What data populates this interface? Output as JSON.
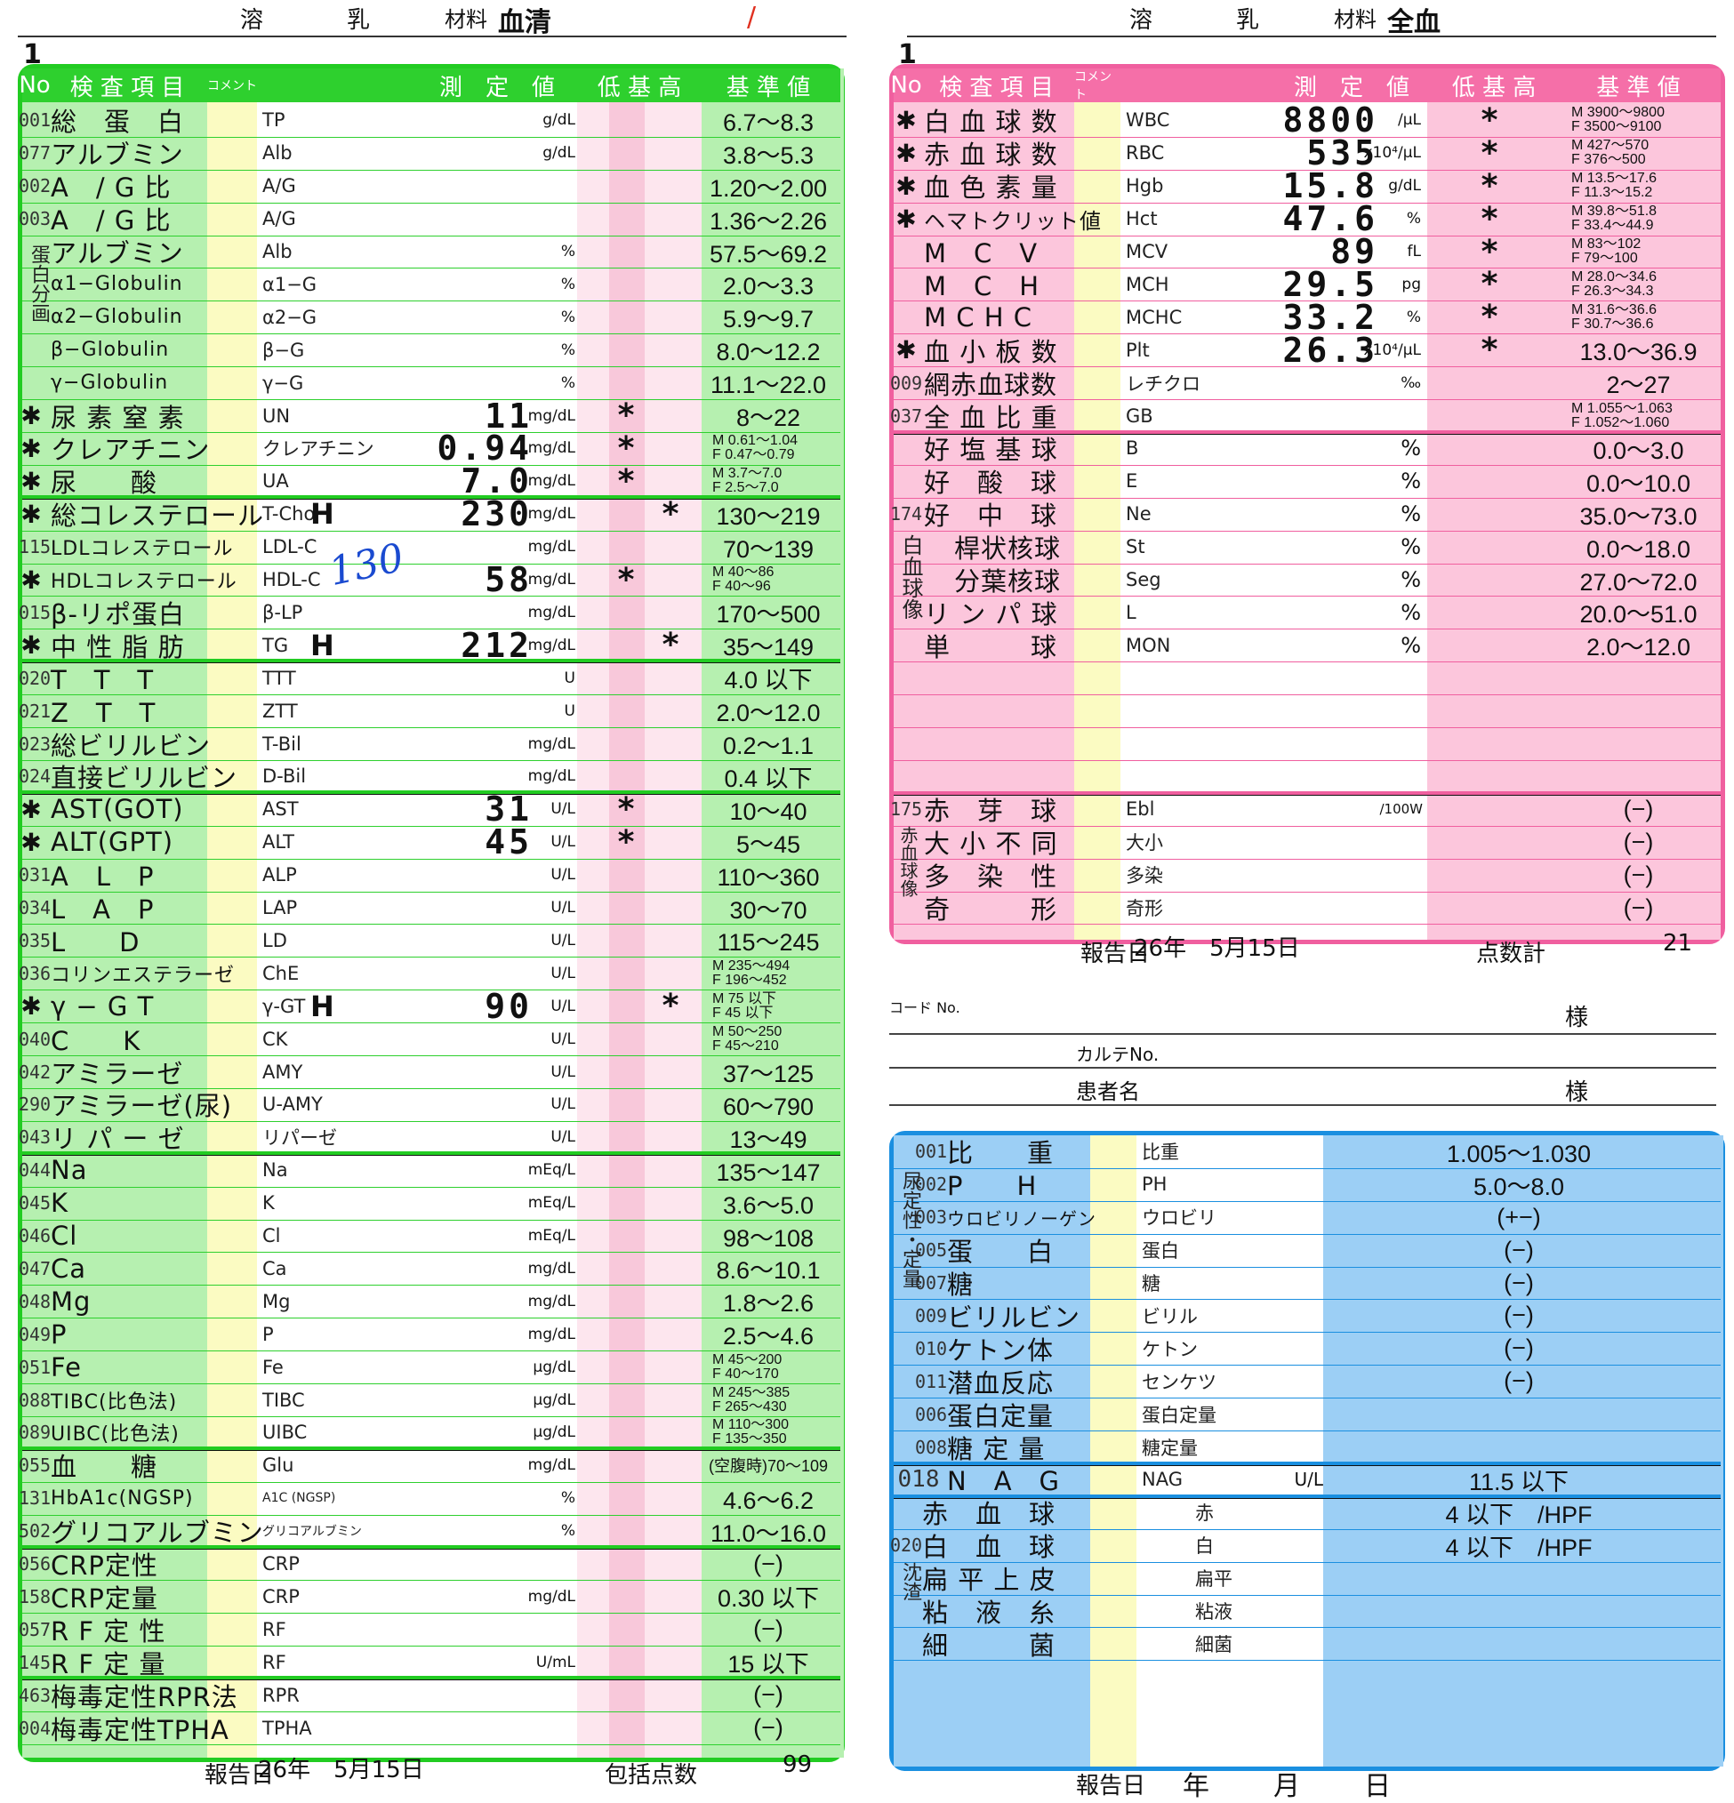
{
  "left": {
    "header": {
      "hemolysis": "溶",
      "chyle": "乳",
      "material_label": "材料",
      "material": "血清"
    },
    "page_no": "1",
    "columns": {
      "no": "No",
      "item": "検 査 項 目",
      "comment": "コメント",
      "value": "測　定　値",
      "lmh": "低 基 高",
      "ref": "基 準 値"
    },
    "rows": [
      {
        "no": "001",
        "name": "総　蛋　白",
        "code": "TP",
        "flag": "",
        "val": "",
        "unit": "g/dL",
        "ast": "",
        "ref": "6.7〜8.3",
        "mark": ""
      },
      {
        "no": "077",
        "name": "アルブミン",
        "code": "Alb",
        "flag": "",
        "val": "",
        "unit": "g/dL",
        "ast": "",
        "ref": "3.8〜5.3",
        "mark": ""
      },
      {
        "no": "002",
        "name": "A　/ G 比",
        "code": "A/G",
        "flag": "",
        "val": "",
        "unit": "",
        "ast": "",
        "ref": "1.20〜2.00",
        "mark": ""
      },
      {
        "no": "003",
        "name": "A　/ G 比",
        "code": "A/G",
        "flag": "",
        "val": "",
        "unit": "",
        "ast": "",
        "ref": "1.36〜2.26",
        "mark": ""
      },
      {
        "no": "",
        "name": "アルブミン",
        "code": "Alb",
        "flag": "",
        "val": "",
        "unit": "%",
        "ast": "",
        "ref": "57.5〜69.2",
        "mark": ""
      },
      {
        "no": "",
        "name": "α1−Globulin",
        "code": "α1−G",
        "flag": "",
        "val": "",
        "unit": "%",
        "ast": "",
        "ref": "2.0〜3.3",
        "mark": ""
      },
      {
        "no": "",
        "name": "α2−Globulin",
        "code": "α2−G",
        "flag": "",
        "val": "",
        "unit": "%",
        "ast": "",
        "ref": "5.9〜9.7",
        "mark": ""
      },
      {
        "no": "",
        "name": "β−Globulin",
        "code": "β−G",
        "flag": "",
        "val": "",
        "unit": "%",
        "ast": "",
        "ref": "8.0〜12.2",
        "mark": ""
      },
      {
        "no": "",
        "name": "γ−Globulin",
        "code": "γ−G",
        "flag": "",
        "val": "",
        "unit": "%",
        "ast": "",
        "ref": "11.1〜22.0",
        "mark": ""
      },
      {
        "no": "",
        "name": "尿 素 窒 素",
        "code": "UN",
        "flag": "",
        "val": "11",
        "unit": "mg/dL",
        "ast": "*",
        "ref": "8〜22",
        "mark": "✱"
      },
      {
        "no": "",
        "name": "クレアチニン",
        "code": "クレアチニン",
        "flag": "",
        "val": "0.94",
        "unit": "mg/dL",
        "ast": "*",
        "ref": "M 0.61〜1.04|F 0.47〜0.79",
        "mark": "✱"
      },
      {
        "no": "",
        "name": "尿　　酸",
        "code": "UA",
        "flag": "",
        "val": "7.0",
        "unit": "mg/dL",
        "ast": "*",
        "ref": "M 3.7〜7.0|F 2.5〜7.0",
        "mark": "✱"
      },
      {
        "no": "",
        "name": "総コレステロール",
        "code": "T-Cho",
        "flag": "H",
        "val": "230",
        "unit": "mg/dL",
        "ast": "*",
        "ref": "130〜219",
        "mark": "✱"
      },
      {
        "no": "115",
        "name": "LDLコレステロール",
        "code": "LDL-C",
        "flag": "",
        "val": "",
        "unit": "mg/dL",
        "ast": "",
        "ref": "70〜139",
        "mark": ""
      },
      {
        "no": "",
        "name": "HDLコレステロール",
        "code": "HDL-C",
        "flag": "",
        "val": "58",
        "unit": "mg/dL",
        "ast": "*",
        "ref": "M 40〜86|F 40〜96",
        "mark": "✱"
      },
      {
        "no": "015",
        "name": "β-リポ蛋白",
        "code": "β-LP",
        "flag": "",
        "val": "",
        "unit": "mg/dL",
        "ast": "",
        "ref": "170〜500",
        "mark": ""
      },
      {
        "no": "",
        "name": "中 性 脂 肪",
        "code": "TG",
        "flag": "H",
        "val": "212",
        "unit": "mg/dL",
        "ast": "*",
        "ref": "35〜149",
        "mark": "✱"
      },
      {
        "no": "020",
        "name": "T　T　T",
        "code": "TTT",
        "flag": "",
        "val": "",
        "unit": "U",
        "ast": "",
        "ref": "4.0 以下",
        "mark": ""
      },
      {
        "no": "021",
        "name": "Z　T　T",
        "code": "ZTT",
        "flag": "",
        "val": "",
        "unit": "U",
        "ast": "",
        "ref": "2.0〜12.0",
        "mark": ""
      },
      {
        "no": "023",
        "name": "総ビリルビン",
        "code": "T-Bil",
        "flag": "",
        "val": "",
        "unit": "mg/dL",
        "ast": "",
        "ref": "0.2〜1.1",
        "mark": ""
      },
      {
        "no": "024",
        "name": "直接ビリルビン",
        "code": "D-Bil",
        "flag": "",
        "val": "",
        "unit": "mg/dL",
        "ast": "",
        "ref": "0.4 以下",
        "mark": ""
      },
      {
        "no": "",
        "name": "AST(GOT)",
        "code": "AST",
        "flag": "",
        "val": "31",
        "unit": "U/L",
        "ast": "*",
        "ref": "10〜40",
        "mark": "✱"
      },
      {
        "no": "",
        "name": "ALT(GPT)",
        "code": "ALT",
        "flag": "",
        "val": "45",
        "unit": "U/L",
        "ast": "*",
        "ref": "5〜45",
        "mark": "✱"
      },
      {
        "no": "031",
        "name": "A　L　P",
        "code": "ALP",
        "flag": "",
        "val": "",
        "unit": "U/L",
        "ast": "",
        "ref": "110〜360",
        "mark": ""
      },
      {
        "no": "034",
        "name": "L　A　P",
        "code": "LAP",
        "flag": "",
        "val": "",
        "unit": "U/L",
        "ast": "",
        "ref": "30〜70",
        "mark": ""
      },
      {
        "no": "035",
        "name": "L　　D",
        "code": "LD",
        "flag": "",
        "val": "",
        "unit": "U/L",
        "ast": "",
        "ref": "115〜245",
        "mark": ""
      },
      {
        "no": "036",
        "name": "コリンエステラーゼ",
        "code": "ChE",
        "flag": "",
        "val": "",
        "unit": "U/L",
        "ast": "",
        "ref": "M 235〜494|F 196〜452",
        "mark": ""
      },
      {
        "no": "",
        "name": "γ − G T",
        "code": "γ-GT",
        "flag": "H",
        "val": "90",
        "unit": "U/L",
        "ast": "*",
        "ref": "M 75 以下|F 45 以下",
        "mark": "✱"
      },
      {
        "no": "040",
        "name": "C　　K",
        "code": "CK",
        "flag": "",
        "val": "",
        "unit": "U/L",
        "ast": "",
        "ref": "M 50〜250|F 45〜210",
        "mark": ""
      },
      {
        "no": "042",
        "name": "アミラーゼ",
        "code": "AMY",
        "flag": "",
        "val": "",
        "unit": "U/L",
        "ast": "",
        "ref": "37〜125",
        "mark": ""
      },
      {
        "no": "290",
        "name": "アミラーゼ(尿)",
        "code": "U-AMY",
        "flag": "",
        "val": "",
        "unit": "U/L",
        "ast": "",
        "ref": "60〜790",
        "mark": ""
      },
      {
        "no": "043",
        "name": "リ パ ー ゼ",
        "code": "リパーゼ",
        "flag": "",
        "val": "",
        "unit": "U/L",
        "ast": "",
        "ref": "13〜49",
        "mark": ""
      },
      {
        "no": "044",
        "name": "Na",
        "code": "Na",
        "flag": "",
        "val": "",
        "unit": "mEq/L",
        "ast": "",
        "ref": "135〜147",
        "mark": ""
      },
      {
        "no": "045",
        "name": "K",
        "code": "K",
        "flag": "",
        "val": "",
        "unit": "mEq/L",
        "ast": "",
        "ref": "3.6〜5.0",
        "mark": ""
      },
      {
        "no": "046",
        "name": "Cl",
        "code": "Cl",
        "flag": "",
        "val": "",
        "unit": "mEq/L",
        "ast": "",
        "ref": "98〜108",
        "mark": ""
      },
      {
        "no": "047",
        "name": "Ca",
        "code": "Ca",
        "flag": "",
        "val": "",
        "unit": "mg/dL",
        "ast": "",
        "ref": "8.6〜10.1",
        "mark": ""
      },
      {
        "no": "048",
        "name": "Mg",
        "code": "Mg",
        "flag": "",
        "val": "",
        "unit": "mg/dL",
        "ast": "",
        "ref": "1.8〜2.6",
        "mark": ""
      },
      {
        "no": "049",
        "name": "P",
        "code": "P",
        "flag": "",
        "val": "",
        "unit": "mg/dL",
        "ast": "",
        "ref": "2.5〜4.6",
        "mark": ""
      },
      {
        "no": "051",
        "name": "Fe",
        "code": "Fe",
        "flag": "",
        "val": "",
        "unit": "μg/dL",
        "ast": "",
        "ref": "M 45〜200|F 40〜170",
        "mark": ""
      },
      {
        "no": "088",
        "name": "TIBC(比色法)",
        "code": "TIBC",
        "flag": "",
        "val": "",
        "unit": "μg/dL",
        "ast": "",
        "ref": "M 245〜385|F 265〜430",
        "mark": ""
      },
      {
        "no": "089",
        "name": "UIBC(比色法)",
        "code": "UIBC",
        "flag": "",
        "val": "",
        "unit": "μg/dL",
        "ast": "",
        "ref": "M 110〜300|F 135〜350",
        "mark": ""
      },
      {
        "no": "055",
        "name": "血　　糖",
        "code": "Glu",
        "flag": "",
        "val": "",
        "unit": "mg/dL",
        "ast": "",
        "ref": "(空腹時)70〜109",
        "mark": ""
      },
      {
        "no": "131",
        "name": "HbA1c(NGSP)",
        "code": "A1C (NGSP)",
        "flag": "",
        "val": "",
        "unit": "%",
        "ast": "",
        "ref": "4.6〜6.2",
        "mark": ""
      },
      {
        "no": "502",
        "name": "グリコアルブミン",
        "code": "グリコアルブミン",
        "flag": "",
        "val": "",
        "unit": "%",
        "ast": "",
        "ref": "11.0〜16.0",
        "mark": ""
      },
      {
        "no": "056",
        "name": "CRP定性",
        "code": "CRP",
        "flag": "",
        "val": "",
        "unit": "",
        "ast": "",
        "ref": "(−)",
        "mark": ""
      },
      {
        "no": "158",
        "name": "CRP定量",
        "code": "CRP",
        "flag": "",
        "val": "",
        "unit": "mg/dL",
        "ast": "",
        "ref": "0.30 以下",
        "mark": ""
      },
      {
        "no": "057",
        "name": "R F 定 性",
        "code": "RF",
        "flag": "",
        "val": "",
        "unit": "",
        "ast": "",
        "ref": "(−)",
        "mark": ""
      },
      {
        "no": "145",
        "name": "R F 定 量",
        "code": "RF",
        "flag": "",
        "val": "",
        "unit": "U/mL",
        "ast": "",
        "ref": "15 以下",
        "mark": ""
      },
      {
        "no": "463",
        "name": "梅毒定性RPR法",
        "code": "RPR",
        "flag": "",
        "val": "",
        "unit": "",
        "ast": "",
        "ref": "(−)",
        "mark": ""
      },
      {
        "no": "004",
        "name": "梅毒定性TPHA",
        "code": "TPHA",
        "flag": "",
        "val": "",
        "unit": "",
        "ast": "",
        "ref": "(−)",
        "mark": ""
      }
    ],
    "side_label": "蛋白分画",
    "handwritten": "130",
    "footer": {
      "report_label": "報告日",
      "report_date": "26年　5月15日",
      "points_label": "包括点数",
      "points": "99"
    }
  },
  "right": {
    "header": {
      "hemolysis": "溶",
      "chyle": "乳",
      "material_label": "材料",
      "material": "全血"
    },
    "page_no": "1",
    "columns": {
      "no": "No",
      "item": "検 査 項 目",
      "comment": "コメント",
      "value": "測　定　値",
      "lmh": "低 基 高",
      "ref": "基 準 値"
    },
    "rows": [
      {
        "no": "",
        "name": "白 血 球 数",
        "code": "WBC",
        "val": "8800",
        "unit": "/μL",
        "ast": "*",
        "ref": "M 3900〜9800|F 3500〜9100",
        "mark": "✱"
      },
      {
        "no": "",
        "name": "赤 血 球 数",
        "code": "RBC",
        "val": "535",
        "unit": "x10⁴/μL",
        "ast": "*",
        "ref": "M 427〜570|F 376〜500",
        "mark": "✱"
      },
      {
        "no": "",
        "name": "血 色 素 量",
        "code": "Hgb",
        "val": "15.8",
        "unit": "g/dL",
        "ast": "*",
        "ref": "M 13.5〜17.6|F 11.3〜15.2",
        "mark": "✱"
      },
      {
        "no": "",
        "name": "ヘマトクリット値",
        "code": "Hct",
        "val": "47.6",
        "unit": "%",
        "ast": "*",
        "ref": "M 39.8〜51.8|F 33.4〜44.9",
        "mark": "✱"
      },
      {
        "no": "",
        "name": "M　C　V",
        "code": "MCV",
        "val": "89",
        "unit": "fL",
        "ast": "*",
        "ref": "M 83〜102|F 79〜100",
        "mark": ""
      },
      {
        "no": "",
        "name": "M　C　H",
        "code": "MCH",
        "val": "29.5",
        "unit": "pg",
        "ast": "*",
        "ref": "M 28.0〜34.6|F 26.3〜34.3",
        "mark": ""
      },
      {
        "no": "",
        "name": "M C H C",
        "code": "MCHC",
        "val": "33.2",
        "unit": "%",
        "ast": "*",
        "ref": "M 31.6〜36.6|F 30.7〜36.6",
        "mark": ""
      },
      {
        "no": "",
        "name": "血 小 板 数",
        "code": "Plt",
        "val": "26.3",
        "unit": "x10⁴/μL",
        "ast": "*",
        "ref": "13.0〜36.9",
        "mark": "✱"
      },
      {
        "no": "009",
        "name": "網赤血球数",
        "code": "レチクロ",
        "val": "",
        "unit": "‰",
        "ast": "",
        "ref": "2〜27",
        "mark": ""
      },
      {
        "no": "037",
        "name": "全 血 比 重",
        "code": "GB",
        "val": "",
        "unit": "",
        "ast": "",
        "ref": "M 1.055〜1.063|F 1.052〜1.060",
        "mark": ""
      }
    ],
    "diff_rows": [
      {
        "name": "好 塩 基 球",
        "code": "B",
        "unit": "%",
        "ref": "0.0〜3.0"
      },
      {
        "name": "好　酸　球",
        "code": "E",
        "unit": "%",
        "ref": "0.0〜10.0"
      },
      {
        "name": "好　中　球",
        "code": "Ne",
        "unit": "%",
        "ref": "35.0〜73.0"
      },
      {
        "name": "桿状核球",
        "code": "St",
        "unit": "%",
        "ref": "0.0〜18.0"
      },
      {
        "name": "分葉核球",
        "code": "Seg",
        "unit": "%",
        "ref": "27.0〜72.0"
      },
      {
        "name": "リ ン パ 球",
        "code": "L",
        "unit": "%",
        "ref": "20.0〜51.0"
      },
      {
        "name": "単　　　球",
        "code": "MON",
        "unit": "%",
        "ref": "2.0〜12.0"
      }
    ],
    "diff_no": "174",
    "diff_label": "白血球像",
    "morph_no": "175",
    "morph_label": "赤血球像",
    "morph_rows": [
      {
        "name": "赤　芽　球",
        "code": "Ebl",
        "unit": "/100W",
        "ref": "(−)"
      },
      {
        "name": "大 小 不 同",
        "code": "大小",
        "unit": "",
        "ref": "(−)"
      },
      {
        "name": "多　染　性",
        "code": "多染",
        "unit": "",
        "ref": "(−)"
      },
      {
        "name": "奇　　　形",
        "code": "奇形",
        "unit": "",
        "ref": "(−)"
      }
    ],
    "footer": {
      "report_label": "報告日",
      "report_date": "26年　5月15日",
      "points_label": "点数計",
      "points": "21"
    },
    "patient": {
      "code_label": "コード No.",
      "sama1": "様",
      "chart_label": "カルテNo.",
      "name_label": "患者名",
      "sama2": "様"
    },
    "urine_rows": [
      {
        "no": "001",
        "name": "比　　重",
        "code": "比重",
        "ref": "1.005〜1.030"
      },
      {
        "no": "002",
        "name": "P　　H",
        "code": "PH",
        "ref": "5.0〜8.0"
      },
      {
        "no": "003",
        "name": "ウロビリノーゲン",
        "code": "ウロビリ",
        "ref": "(+−)"
      },
      {
        "no": "005",
        "name": "蛋　　白",
        "code": "蛋白",
        "ref": "(−)"
      },
      {
        "no": "007",
        "name": "糖",
        "code": "糖",
        "ref": "(−)"
      },
      {
        "no": "009",
        "name": "ビリルビン",
        "code": "ビリル",
        "ref": "(−)"
      },
      {
        "no": "010",
        "name": "ケトン体",
        "code": "ケトン",
        "ref": "(−)"
      },
      {
        "no": "011",
        "name": "潜血反応",
        "code": "センケツ",
        "ref": "(−)"
      },
      {
        "no": "006",
        "name": "蛋白定量",
        "code": "蛋白定量",
        "ref": ""
      },
      {
        "no": "008",
        "name": "糖 定 量",
        "code": "糖定量",
        "ref": ""
      }
    ],
    "urine_label": "尿定性・定量",
    "nag": {
      "no": "018",
      "name": "N　A　G",
      "code": "NAG",
      "unit": "U/L",
      "ref": "11.5 以下"
    },
    "sed_no": "020",
    "sed_label": "沈渣",
    "sed_rows": [
      {
        "name": "赤　血　球",
        "code": "赤",
        "ref": "4 以下　/HPF"
      },
      {
        "name": "白　血　球",
        "code": "白",
        "ref": "4 以下　/HPF"
      },
      {
        "name": "扁 平 上 皮",
        "code": "扁平",
        "ref": ""
      },
      {
        "name": "粘　液　糸",
        "code": "粘液",
        "ref": ""
      },
      {
        "name": "細　　　菌",
        "code": "細菌",
        "ref": ""
      }
    ],
    "footer2": {
      "report_label": "報告日",
      "report_date": "年　　月　　日"
    }
  }
}
